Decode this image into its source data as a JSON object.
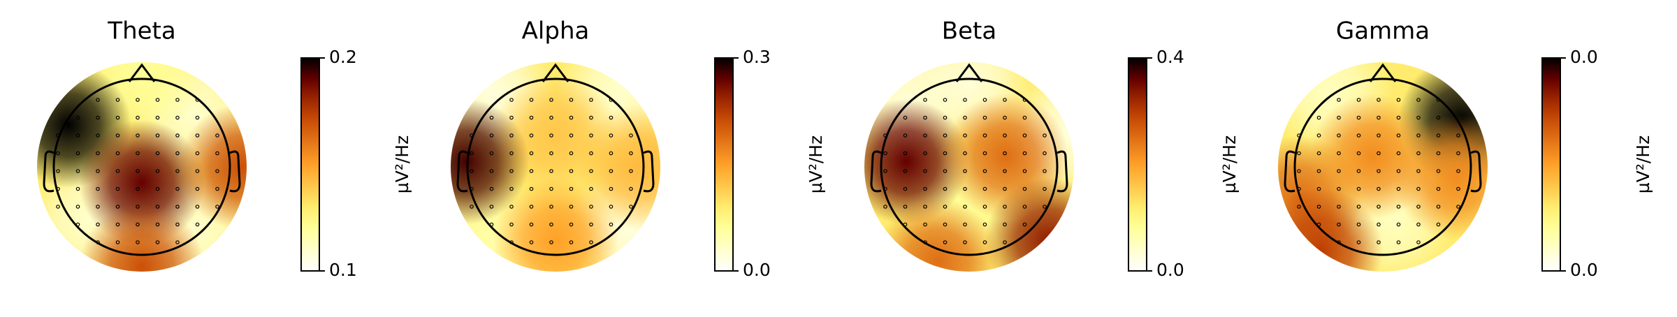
{
  "chart_data": [
    {
      "type": "topomap",
      "title": "Theta",
      "colorbar_label": "µV²/Hz",
      "colormap": "afmhot_r",
      "clim": [
        0.1,
        0.2
      ],
      "cticks": [
        0.1,
        0.2
      ],
      "hotspots": [
        {
          "x": 0.5,
          "y": 0.5,
          "value": 0.11
        },
        {
          "x": -0.5,
          "y": -0.5,
          "value": 0.11
        },
        {
          "x": 0.5,
          "y": -0.6,
          "value": 0.11
        },
        {
          "x": 0,
          "y": 0.9,
          "value": 0.12
        },
        {
          "x": -0.7,
          "y": 0.4,
          "value": 0.2
        },
        {
          "x": 0,
          "y": -0.15,
          "value": 0.19
        },
        {
          "x": 0,
          "y": -0.95,
          "value": 0.17
        },
        {
          "x": 0.95,
          "y": 0,
          "value": 0.17
        }
      ]
    },
    {
      "type": "topomap",
      "title": "Alpha",
      "colorbar_label": "µV²/Hz",
      "colormap": "afmhot_r",
      "clim": [
        0,
        0.3
      ],
      "cticks": [
        {
          "value": 0,
          "label": "0.0"
        },
        0.3
      ],
      "hotspots": [
        {
          "x": -0.6,
          "y": 0.7,
          "value": 0.02
        },
        {
          "x": 0.6,
          "y": 0.7,
          "value": 0.03
        },
        {
          "x": -0.6,
          "y": -0.7,
          "value": 0.05
        },
        {
          "x": 0.7,
          "y": -0.6,
          "value": 0.02
        },
        {
          "x": 0,
          "y": 0.3,
          "value": 0.12
        },
        {
          "x": -0.85,
          "y": 0.05,
          "value": 0.28
        },
        {
          "x": 0,
          "y": -0.7,
          "value": 0.15
        },
        {
          "x": 0.8,
          "y": 0,
          "value": 0.13
        }
      ]
    },
    {
      "type": "topomap",
      "title": "Beta",
      "colorbar_label": "µV²/Hz",
      "colormap": "afmhot_r",
      "clim": [
        0,
        0.4
      ],
      "cticks": [
        {
          "value": 0,
          "label": "0.0"
        },
        0.4
      ],
      "hotspots": [
        {
          "x": 0,
          "y": 0.8,
          "value": 0.03
        },
        {
          "x": -0.6,
          "y": 0.6,
          "value": 0.03
        },
        {
          "x": 0,
          "y": -0.3,
          "value": 0.08
        },
        {
          "x": 0.9,
          "y": 0.3,
          "value": 0.03
        },
        {
          "x": -0.6,
          "y": 0.05,
          "value": 0.36
        },
        {
          "x": 0.35,
          "y": 0.1,
          "value": 0.25
        },
        {
          "x": 0.75,
          "y": -0.7,
          "value": 0.33
        },
        {
          "x": -0.3,
          "y": -0.9,
          "value": 0.25
        }
      ]
    },
    {
      "type": "topomap",
      "title": "Gamma",
      "colorbar_label": "µV²/Hz",
      "colormap": "afmhot_r",
      "clim": [
        0,
        0.04
      ],
      "cticks": [
        {
          "value": 0,
          "label": "0.0"
        },
        {
          "value": 0.04,
          "label": "0.0"
        }
      ],
      "hotspots": [
        {
          "x": -0.5,
          "y": 0.7,
          "value": 0.005
        },
        {
          "x": 0.1,
          "y": -0.5,
          "value": 0.005
        },
        {
          "x": 0.75,
          "y": 0.45,
          "value": 0.04
        },
        {
          "x": -0.8,
          "y": -0.3,
          "value": 0.025
        },
        {
          "x": -0.1,
          "y": 0.1,
          "value": 0.022
        },
        {
          "x": -0.6,
          "y": -0.8,
          "value": 0.03
        },
        {
          "x": 0.7,
          "y": -0.1,
          "value": 0.022
        }
      ]
    }
  ]
}
